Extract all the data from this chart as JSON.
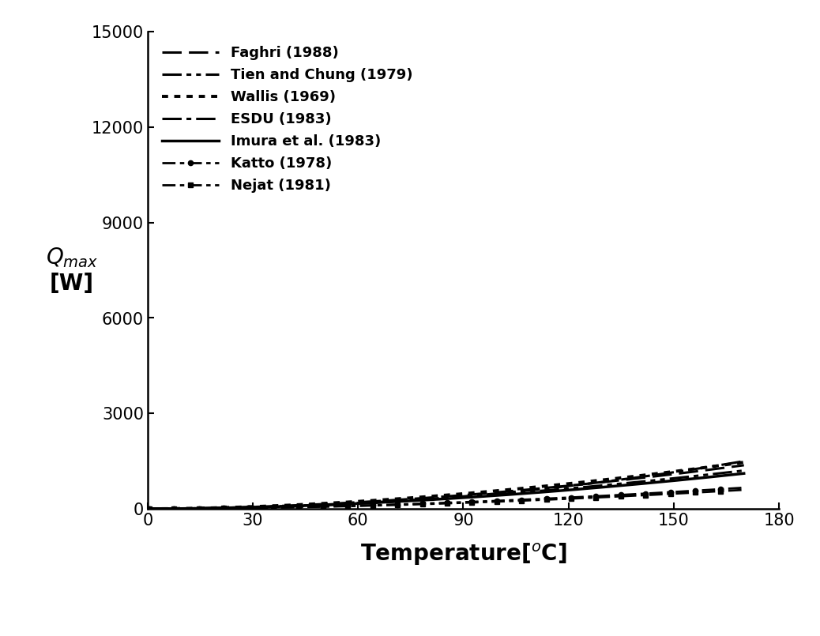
{
  "xlabel": "Temperature[$^{o}$C]",
  "ylabel": "Q$_{max}$\n[W]",
  "xlim": [
    0,
    180
  ],
  "ylim": [
    0,
    15000
  ],
  "xticks": [
    0,
    30,
    60,
    90,
    120,
    150,
    180
  ],
  "yticks": [
    0,
    3000,
    6000,
    9000,
    12000,
    15000
  ],
  "background_color": "#ffffff",
  "legend_fontsize": 13,
  "tick_fontsize": 15,
  "label_fontsize": 20,
  "series": [
    {
      "label": "Faghri (1988)",
      "ls_type": "dashed",
      "lw": 2.2,
      "marker": null,
      "a": 0.1195,
      "n": 1.82
    },
    {
      "label": "Tien and Chung (1979)",
      "ls_type": "dashdotdot",
      "lw": 2.2,
      "marker": null,
      "a": 0.105,
      "n": 1.82
    },
    {
      "label": "Wallis (1969)",
      "ls_type": "dotted",
      "lw": 2.8,
      "marker": null,
      "a": 0.165,
      "n": 1.77
    },
    {
      "label": "ESDU (1983)",
      "ls_type": "dashdot",
      "lw": 2.2,
      "marker": null,
      "a": 0.028,
      "n": 2.12
    },
    {
      "label": "Imura et al. (1983)",
      "ls_type": "solid",
      "lw": 2.5,
      "marker": null,
      "a": 0.097,
      "n": 1.82
    },
    {
      "label": "Katto (1978)",
      "ls_type": "dashdotmarker",
      "lw": 2.0,
      "marker": "o",
      "a": 0.058,
      "n": 1.82
    },
    {
      "label": "Nejat (1981)",
      "ls_type": "dashdotmarker2",
      "lw": 2.0,
      "marker": "s",
      "a": 0.052,
      "n": 1.82
    }
  ]
}
